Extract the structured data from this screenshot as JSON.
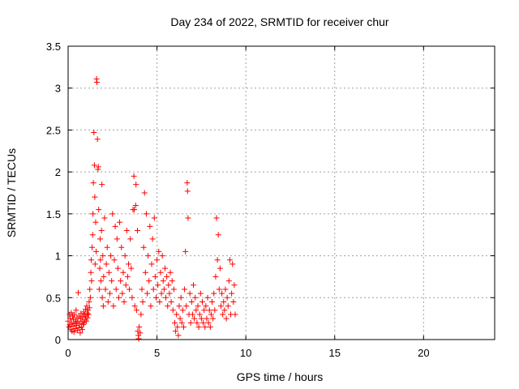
{
  "chart_data": {
    "type": "scatter",
    "title": "Day 234 of 2022, SRMTID for receiver chur",
    "xlabel": "GPS time / hours",
    "ylabel": "SRMTID / TECUs",
    "xlim": [
      0,
      24
    ],
    "ylim": [
      0,
      3.5
    ],
    "x_ticks": [
      0,
      5,
      10,
      15,
      20
    ],
    "x_tick_labels": [
      "0",
      "5",
      "10",
      "15",
      "20"
    ],
    "y_ticks": [
      0,
      0.5,
      1,
      1.5,
      2,
      2.5,
      3,
      3.5
    ],
    "y_tick_labels": [
      "0",
      "0.5",
      "1",
      "1.5",
      "2",
      "2.5",
      "3",
      "3.5"
    ],
    "grid": true,
    "marker": "plus",
    "color": "#ff0000",
    "series": [
      {
        "name": "SRMTID",
        "points": [
          [
            0.0,
            0.22
          ],
          [
            0.05,
            0.15
          ],
          [
            0.08,
            0.3
          ],
          [
            0.1,
            0.18
          ],
          [
            0.12,
            0.25
          ],
          [
            0.15,
            0.12
          ],
          [
            0.18,
            0.32
          ],
          [
            0.2,
            0.2
          ],
          [
            0.22,
            0.1
          ],
          [
            0.25,
            0.28
          ],
          [
            0.28,
            0.16
          ],
          [
            0.3,
            0.24
          ],
          [
            0.33,
            0.09
          ],
          [
            0.35,
            0.3
          ],
          [
            0.38,
            0.19
          ],
          [
            0.4,
            0.13
          ],
          [
            0.42,
            0.22
          ],
          [
            0.45,
            0.35
          ],
          [
            0.48,
            0.17
          ],
          [
            0.5,
            0.26
          ],
          [
            0.52,
            0.11
          ],
          [
            0.55,
            0.21
          ],
          [
            0.57,
            0.56
          ],
          [
            0.6,
            0.14
          ],
          [
            0.62,
            0.28
          ],
          [
            0.65,
            0.19
          ],
          [
            0.68,
            0.08
          ],
          [
            0.7,
            0.25
          ],
          [
            0.72,
            0.31
          ],
          [
            0.75,
            0.15
          ],
          [
            0.78,
            0.22
          ],
          [
            0.8,
            0.12
          ],
          [
            0.82,
            0.27
          ],
          [
            0.85,
            0.18
          ],
          [
            0.88,
            0.33
          ],
          [
            0.9,
            0.2
          ],
          [
            0.92,
            0.3
          ],
          [
            0.95,
            0.24
          ],
          [
            0.98,
            0.36
          ],
          [
            1.0,
            0.28
          ],
          [
            1.02,
            0.22
          ],
          [
            1.05,
            0.4
          ],
          [
            1.08,
            0.31
          ],
          [
            1.1,
            0.26
          ],
          [
            1.12,
            0.35
          ],
          [
            1.15,
            0.3
          ],
          [
            1.18,
            0.45
          ],
          [
            1.2,
            0.38
          ],
          [
            1.22,
            0.6
          ],
          [
            1.25,
            0.5
          ],
          [
            1.28,
            0.8
          ],
          [
            1.3,
            0.95
          ],
          [
            1.32,
            0.7
          ],
          [
            1.35,
            1.1
          ],
          [
            1.38,
            1.25
          ],
          [
            1.4,
            1.5
          ],
          [
            1.42,
            1.87
          ],
          [
            1.45,
            2.47
          ],
          [
            1.48,
            2.08
          ],
          [
            1.5,
            1.7
          ],
          [
            1.52,
            0.9
          ],
          [
            1.55,
            1.4
          ],
          [
            1.58,
            1.05
          ],
          [
            1.6,
            3.11
          ],
          [
            1.62,
            3.07
          ],
          [
            1.65,
            2.39
          ],
          [
            1.68,
            2.03
          ],
          [
            1.7,
            2.06
          ],
          [
            1.72,
            1.55
          ],
          [
            1.75,
            0.6
          ],
          [
            1.78,
            0.85
          ],
          [
            1.8,
            1.2
          ],
          [
            1.82,
            0.95
          ],
          [
            1.85,
            0.7
          ],
          [
            1.88,
            1.3
          ],
          [
            1.9,
            1.85
          ],
          [
            1.92,
            0.5
          ],
          [
            1.95,
            1.0
          ],
          [
            1.98,
            0.4
          ],
          [
            2.0,
            0.75
          ],
          [
            2.05,
            1.45
          ],
          [
            2.1,
            0.6
          ],
          [
            2.15,
            0.9
          ],
          [
            2.2,
            1.1
          ],
          [
            2.25,
            0.45
          ],
          [
            2.3,
            0.8
          ],
          [
            2.35,
            0.55
          ],
          [
            2.4,
            1.0
          ],
          [
            2.45,
            0.7
          ],
          [
            2.5,
            1.5
          ],
          [
            2.55,
            0.4
          ],
          [
            2.6,
            0.95
          ],
          [
            2.65,
            1.35
          ],
          [
            2.7,
            0.6
          ],
          [
            2.75,
            1.2
          ],
          [
            2.8,
            0.85
          ],
          [
            2.85,
            0.5
          ],
          [
            2.9,
            1.4
          ],
          [
            2.95,
            0.7
          ],
          [
            3.0,
            1.1
          ],
          [
            3.05,
            0.55
          ],
          [
            3.1,
            0.8
          ],
          [
            3.15,
            0.45
          ],
          [
            3.2,
            1.0
          ],
          [
            3.25,
            0.65
          ],
          [
            3.3,
            1.3
          ],
          [
            3.35,
            0.75
          ],
          [
            3.4,
            0.9
          ],
          [
            3.45,
            0.6
          ],
          [
            3.5,
            1.2
          ],
          [
            3.55,
            0.85
          ],
          [
            3.6,
            0.5
          ],
          [
            3.65,
            1.55
          ],
          [
            3.7,
            1.95
          ],
          [
            3.72,
            1.55
          ],
          [
            3.75,
            0.4
          ],
          [
            3.8,
            1.6
          ],
          [
            3.82,
            1.85
          ],
          [
            3.85,
            0.35
          ],
          [
            3.9,
            1.3
          ],
          [
            3.92,
            0.1
          ],
          [
            3.95,
            0.05
          ],
          [
            3.97,
            0.01
          ],
          [
            4.0,
            0.15
          ],
          [
            4.05,
            0.08
          ],
          [
            4.1,
            0.3
          ],
          [
            4.15,
            0.6
          ],
          [
            4.2,
            0.45
          ],
          [
            4.25,
            1.1
          ],
          [
            4.3,
            1.75
          ],
          [
            4.35,
            0.8
          ],
          [
            4.4,
            1.5
          ],
          [
            4.45,
            0.55
          ],
          [
            4.5,
            1.0
          ],
          [
            4.55,
            0.7
          ],
          [
            4.6,
            1.35
          ],
          [
            4.65,
            0.4
          ],
          [
            4.7,
            0.9
          ],
          [
            4.75,
            1.2
          ],
          [
            4.8,
            0.6
          ],
          [
            4.85,
            1.45
          ],
          [
            4.9,
            0.75
          ],
          [
            4.95,
            0.5
          ],
          [
            5.0,
            0.95
          ],
          [
            5.05,
            0.65
          ],
          [
            5.1,
            1.05
          ],
          [
            5.15,
            0.45
          ],
          [
            5.2,
            0.8
          ],
          [
            5.25,
            0.55
          ],
          [
            5.3,
            1.0
          ],
          [
            5.35,
            0.7
          ],
          [
            5.4,
            0.6
          ],
          [
            5.45,
            0.85
          ],
          [
            5.5,
            0.5
          ],
          [
            5.55,
            0.75
          ],
          [
            5.6,
            0.4
          ],
          [
            5.65,
            0.65
          ],
          [
            5.7,
            0.55
          ],
          [
            5.75,
            0.8
          ],
          [
            5.8,
            0.45
          ],
          [
            5.85,
            0.7
          ],
          [
            5.9,
            0.35
          ],
          [
            5.95,
            0.6
          ],
          [
            6.0,
            0.2
          ],
          [
            6.05,
            0.1
          ],
          [
            6.1,
            0.3
          ],
          [
            6.15,
            0.15
          ],
          [
            6.2,
            0.05
          ],
          [
            6.25,
            0.4
          ],
          [
            6.3,
            0.25
          ],
          [
            6.35,
            0.5
          ],
          [
            6.4,
            0.2
          ],
          [
            6.45,
            0.35
          ],
          [
            6.5,
            0.15
          ],
          [
            6.55,
            0.6
          ],
          [
            6.6,
            1.05
          ],
          [
            6.65,
            0.4
          ],
          [
            6.7,
            1.87
          ],
          [
            6.72,
            1.77
          ],
          [
            6.75,
            1.45
          ],
          [
            6.8,
            0.3
          ],
          [
            6.85,
            0.55
          ],
          [
            6.9,
            0.2
          ],
          [
            6.95,
            0.45
          ],
          [
            7.0,
            0.3
          ],
          [
            7.05,
            0.65
          ],
          [
            7.1,
            0.25
          ],
          [
            7.15,
            0.5
          ],
          [
            7.2,
            0.35
          ],
          [
            7.25,
            0.2
          ],
          [
            7.3,
            0.4
          ],
          [
            7.35,
            0.15
          ],
          [
            7.4,
            0.3
          ],
          [
            7.45,
            0.55
          ],
          [
            7.5,
            0.25
          ],
          [
            7.55,
            0.45
          ],
          [
            7.6,
            0.2
          ],
          [
            7.65,
            0.35
          ],
          [
            7.7,
            0.15
          ],
          [
            7.75,
            0.4
          ],
          [
            7.8,
            0.25
          ],
          [
            7.85,
            0.5
          ],
          [
            7.9,
            0.2
          ],
          [
            7.95,
            0.35
          ],
          [
            8.0,
            0.15
          ],
          [
            8.05,
            0.3
          ],
          [
            8.1,
            0.45
          ],
          [
            8.15,
            0.25
          ],
          [
            8.2,
            0.55
          ],
          [
            8.25,
            0.35
          ],
          [
            8.3,
            0.75
          ],
          [
            8.35,
            1.45
          ],
          [
            8.4,
            0.95
          ],
          [
            8.45,
            1.25
          ],
          [
            8.5,
            0.6
          ],
          [
            8.55,
            0.85
          ],
          [
            8.6,
            0.4
          ],
          [
            8.65,
            0.55
          ],
          [
            8.7,
            0.3
          ],
          [
            8.75,
            0.45
          ],
          [
            8.8,
            0.35
          ],
          [
            8.85,
            0.6
          ],
          [
            8.9,
            0.25
          ],
          [
            8.95,
            0.5
          ],
          [
            9.0,
            0.4
          ],
          [
            9.05,
            0.7
          ],
          [
            9.1,
            0.95
          ],
          [
            9.15,
            0.3
          ],
          [
            9.2,
            0.55
          ],
          [
            9.25,
            0.9
          ],
          [
            9.3,
            0.45
          ],
          [
            9.35,
            0.65
          ],
          [
            9.4,
            0.3
          ]
        ]
      }
    ]
  }
}
